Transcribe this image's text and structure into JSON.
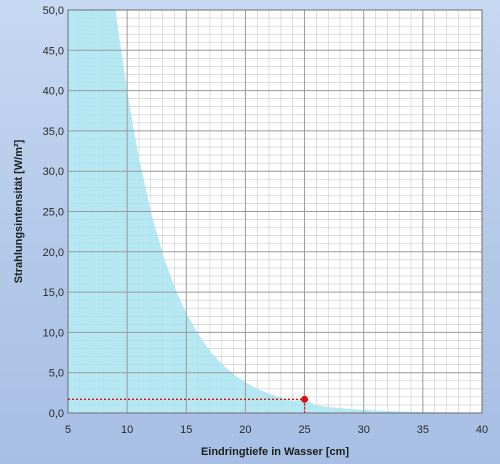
{
  "chart_data": {
    "type": "area",
    "xlabel": "Eindringtiefe in Wasser [cm]",
    "ylabel": "Strahlungsintensität  [W/m²]",
    "xlim": [
      5,
      40
    ],
    "ylim": [
      0,
      50
    ],
    "x_ticks": [
      "5",
      "10",
      "15",
      "20",
      "25",
      "30",
      "35",
      "40"
    ],
    "y_ticks": [
      "0,0",
      "5,0",
      "10,0",
      "15,0",
      "20,0",
      "25,0",
      "30,0",
      "35,0",
      "40,0",
      "45,0",
      "50,0"
    ],
    "grid": true,
    "series": [
      {
        "x": [
          5,
          9,
          9.5,
          10,
          10.5,
          11,
          12,
          13,
          14,
          15,
          16,
          17,
          18,
          19,
          20,
          21,
          22,
          23,
          24,
          25,
          26,
          27,
          28,
          29,
          30,
          32,
          34,
          36,
          38,
          40
        ],
        "values": [
          50,
          50,
          45,
          40,
          35.6,
          31.6,
          25,
          19.8,
          15.6,
          12.4,
          9.8,
          7.7,
          6.1,
          4.8,
          3.8,
          3.0,
          2.4,
          1.9,
          1.5,
          1.7,
          0.95,
          0.75,
          0.6,
          0.48,
          0.38,
          0.24,
          0.15,
          0.09,
          0.06,
          0.04
        ],
        "color": "#a8e4f0"
      }
    ],
    "marker": {
      "x": 25,
      "y": 1.7,
      "color": "#e01010"
    }
  },
  "colors": {
    "background": "#b8cdea",
    "plot_area": "#ffffff",
    "fill": "#a8e4f0",
    "grid": "#9a9a9a",
    "marker": "#e01010"
  }
}
